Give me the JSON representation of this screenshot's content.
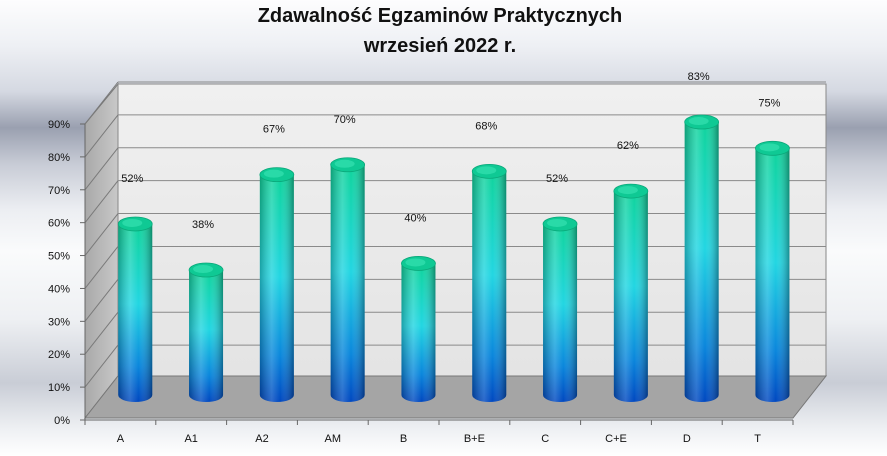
{
  "chart_data": {
    "type": "bar",
    "title": "Zdawalność Egzaminów Praktycznych",
    "subtitle": "wrzesień 2022 r.",
    "categories": [
      "A",
      "A1",
      "A2",
      "AM",
      "B",
      "B+E",
      "C",
      "C+E",
      "D",
      "T"
    ],
    "values": [
      52,
      38,
      67,
      70,
      40,
      68,
      52,
      62,
      83,
      75
    ],
    "value_labels": [
      "52%",
      "38%",
      "67%",
      "70%",
      "40%",
      "68%",
      "52%",
      "62%",
      "83%",
      "75%"
    ],
    "y_ticks": [
      "0%",
      "10%",
      "20%",
      "30%",
      "40%",
      "50%",
      "60%",
      "70%",
      "80%",
      "90%"
    ],
    "ylim": [
      0,
      90
    ],
    "grid": true,
    "legend": "none",
    "style": "3d-cylinder",
    "colors": {
      "bar_top": "#0fd6a0",
      "bar_mid": "#22d8e0",
      "bar_bottom": "#0050c8",
      "wall": "#e6e6e6",
      "floor": "#a8a8a8"
    }
  }
}
